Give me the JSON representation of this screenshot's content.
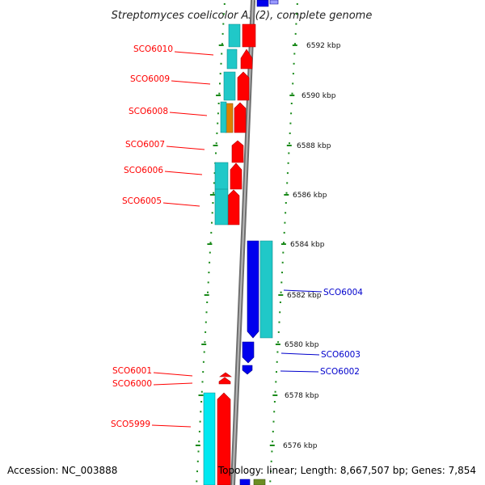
{
  "title": "Streptomyces coelicolor A3(2), complete genome",
  "footer": {
    "accession": "Accession: NC_003888",
    "summary": "Topology: linear; Length: 8,667,507 bp; Genes: 7,854"
  },
  "colors": {
    "reverse_strand_gene": "#ff0000",
    "forward_strand_gene": "#0000ee",
    "cds": "#20c8c8",
    "cds_bright": "#00e8f0",
    "misc_feature": "#e08000",
    "other_feature": "#6b8e23",
    "backbone": "#8f8f8f",
    "tick": "#1a8a1a",
    "reverse_label": "#ff0000",
    "forward_label": "#0000cc"
  },
  "kbp_ticks": [
    "6592 kbp",
    "6590 kbp",
    "6588 kbp",
    "6586 kbp",
    "6584 kbp",
    "6582 kbp",
    "6580 kbp",
    "6578 kbp",
    "6576 kbp"
  ],
  "gene_labels": {
    "reverse": [
      "SCO6010",
      "SCO6009",
      "SCO6008",
      "SCO6007",
      "SCO6006",
      "SCO6005",
      "SCO6001",
      "SCO6000",
      "SCO5999"
    ],
    "forward": [
      "SCO6004",
      "SCO6003",
      "SCO6002"
    ]
  }
}
